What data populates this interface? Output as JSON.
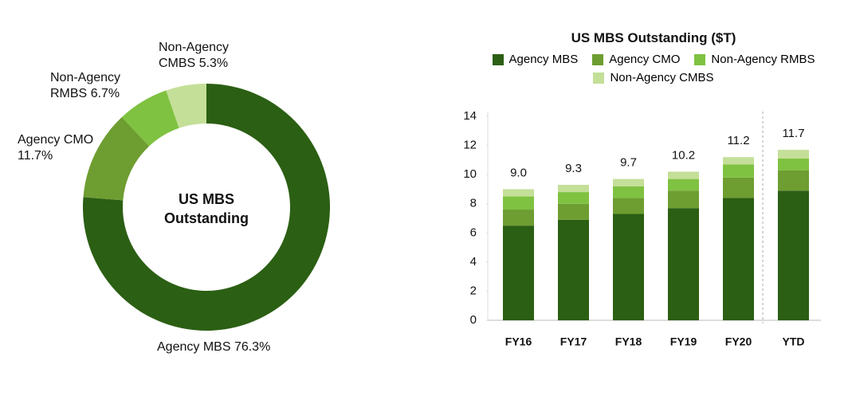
{
  "chart_data": [
    {
      "type": "pie",
      "donut": true,
      "center_label": "US MBS Outstanding",
      "labels": [
        "Agency MBS",
        "Agency CMO",
        "Non-Agency RMBS",
        "Non-Agency CMBS"
      ],
      "values": [
        76.3,
        11.7,
        6.7,
        5.3
      ],
      "value_labels": [
        "76.3%",
        "11.7%",
        "6.7%",
        "5.3%"
      ],
      "colors": [
        "#2b5f13",
        "#6e9d31",
        "#7fc241",
        "#c4df98"
      ]
    },
    {
      "type": "stacked_bar",
      "title": "US MBS Outstanding ($T)",
      "categories": [
        "FY16",
        "FY17",
        "FY18",
        "FY19",
        "FY20",
        "YTD"
      ],
      "series": [
        {
          "name": "Agency MBS",
          "color": "#2b5f13",
          "values": [
            6.5,
            6.9,
            7.3,
            7.7,
            8.4,
            8.9
          ]
        },
        {
          "name": "Agency CMO",
          "color": "#6e9d31",
          "values": [
            1.1,
            1.1,
            1.1,
            1.2,
            1.4,
            1.4
          ]
        },
        {
          "name": "Non-Agency RMBS",
          "color": "#7fc241",
          "values": [
            0.9,
            0.8,
            0.8,
            0.8,
            0.9,
            0.8
          ]
        },
        {
          "name": "Non-Agency CMBS",
          "color": "#c4df98",
          "values": [
            0.5,
            0.5,
            0.5,
            0.5,
            0.5,
            0.6
          ]
        }
      ],
      "totals": [
        9,
        9.3,
        9.7,
        10.2,
        11.2,
        11.7
      ],
      "total_labels": [
        "9.0",
        "9.3",
        "9.7",
        "10.2",
        "11.2",
        "11.7"
      ],
      "ylim": [
        0,
        14
      ],
      "yticks": [
        0,
        2,
        4,
        6,
        8,
        10,
        12,
        14
      ]
    }
  ]
}
